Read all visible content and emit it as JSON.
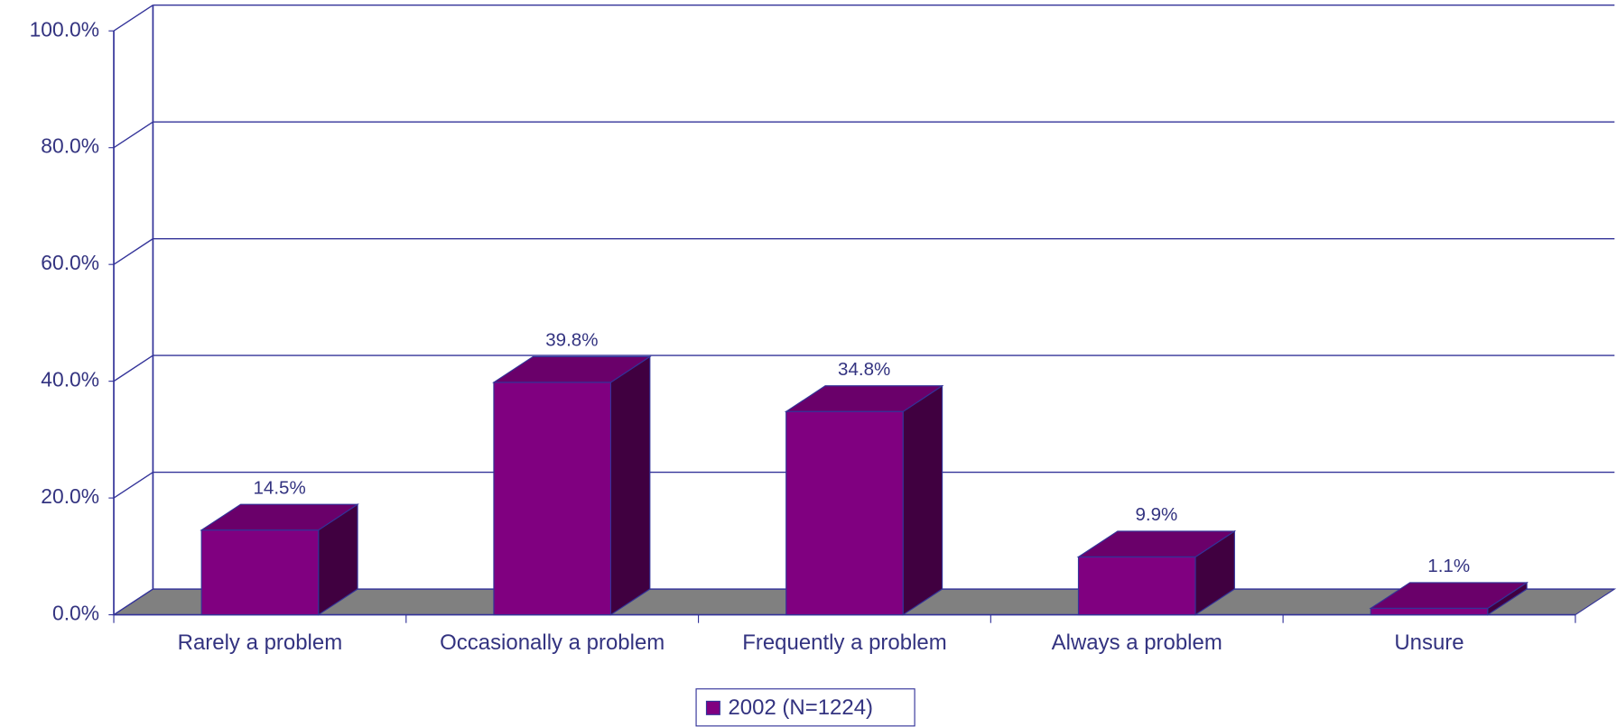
{
  "chart_data": {
    "type": "bar3d",
    "categories": [
      "Rarely a problem",
      "Occasionally a problem",
      "Frequently a problem",
      "Always a problem",
      "Unsure"
    ],
    "series": [
      {
        "name": "2002 (N=1224)",
        "color": "#800080",
        "values": [
          14.5,
          39.8,
          34.8,
          9.9,
          1.1
        ],
        "value_labels": [
          "14.5%",
          "39.8%",
          "34.8%",
          "9.9%",
          "1.1%"
        ]
      }
    ],
    "ylim": [
      0,
      100
    ],
    "yticks": [
      {
        "value": 0,
        "label": "0.0%"
      },
      {
        "value": 20,
        "label": "20.0%"
      },
      {
        "value": 40,
        "label": "40.0%"
      },
      {
        "value": 60,
        "label": "60.0%"
      },
      {
        "value": 80,
        "label": "80.0%"
      },
      {
        "value": 100,
        "label": "100.0%"
      }
    ],
    "grid": true,
    "legend": "bottom"
  }
}
